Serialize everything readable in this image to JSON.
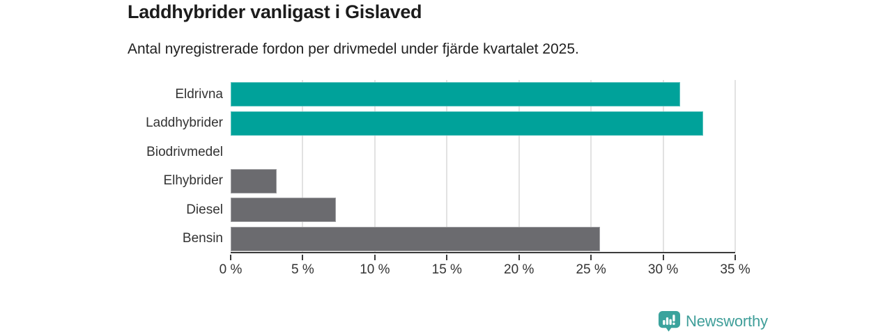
{
  "title": "Laddhybrider vanligast i Gislaved",
  "subtitle": "Antal nyregistrerade fordon per drivmedel under fjärde kvartalet 2025.",
  "logo": {
    "text": "Newsworthy",
    "icon": "newsworthy-chart-bubble-icon",
    "icon_color": "#3ba39d",
    "text_color": "#3f9e99"
  },
  "colors": {
    "highlight_teal": "#00a29a",
    "bar_gray": "#6b6b6f",
    "gridline": "#e2e2e2",
    "axis": "#3b3b3b",
    "title_text": "#1c1c1c",
    "label_text": "#333333"
  },
  "chart_data": {
    "type": "bar",
    "orientation": "horizontal",
    "title": "Laddhybrider vanligast i Gislaved",
    "subtitle": "Antal nyregistrerade fordon per drivmedel under fjärde kvartalet 2025.",
    "categories": [
      "Eldrivna",
      "Laddhybrider",
      "Biodrivmedel",
      "Elhybrider",
      "Diesel",
      "Bensin"
    ],
    "values": [
      31.2,
      32.8,
      0,
      3.2,
      7.3,
      25.6
    ],
    "bar_colors": [
      "#00a29a",
      "#00a29a",
      "#6b6b6f",
      "#6b6b6f",
      "#6b6b6f",
      "#6b6b6f"
    ],
    "unit": "%",
    "xlim": [
      0,
      35
    ],
    "x_tick_values": [
      0,
      5,
      10,
      15,
      20,
      25,
      30,
      35
    ],
    "x_tick_labels": [
      "0 %",
      "5 %",
      "10 %",
      "15 %",
      "20 %",
      "25 %",
      "30 %",
      "35 %"
    ],
    "grid": true,
    "legend": false
  }
}
